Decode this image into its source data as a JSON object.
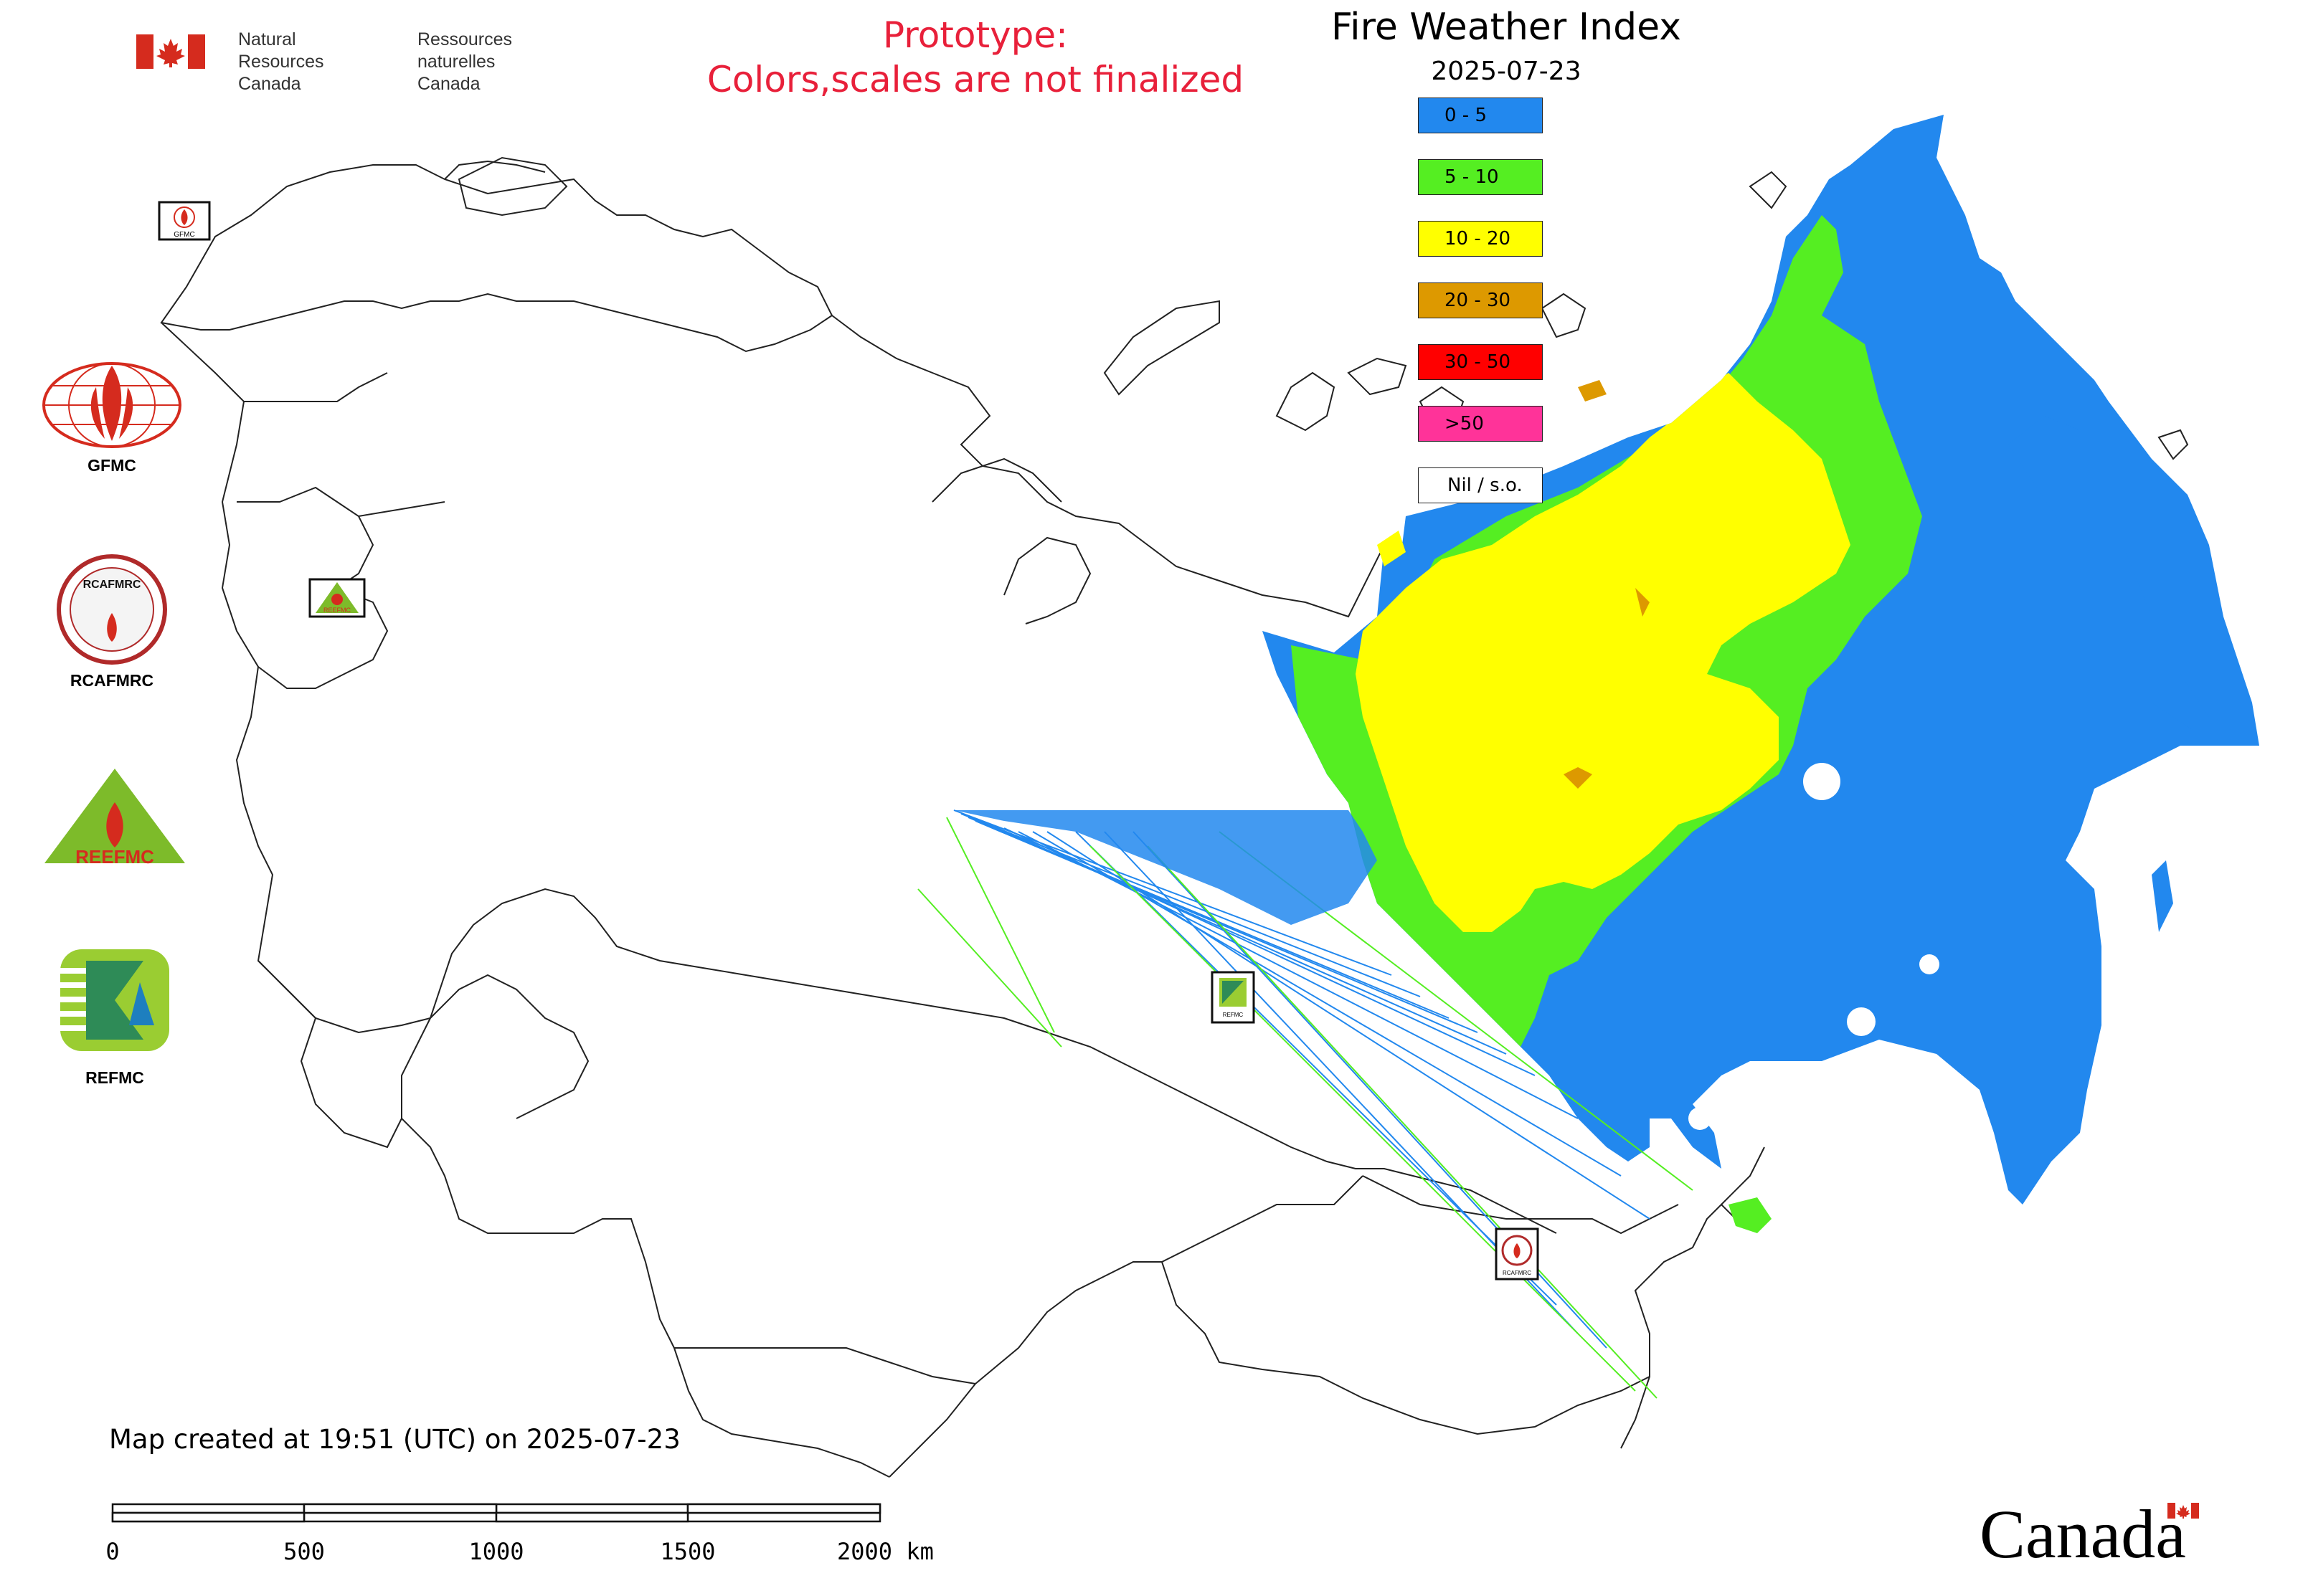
{
  "header": {
    "agency_en_line1": "Natural Resources",
    "agency_en_line2": "Canada",
    "agency_fr_line1": "Ressources naturelles",
    "agency_fr_line2": "Canada",
    "prototype_line1": "Prototype:",
    "prototype_line2": "Colors,scales are not finalized"
  },
  "map": {
    "title": "Fire Weather Index",
    "date": "2025-07-23"
  },
  "legend": {
    "items": [
      {
        "label": "0 - 5",
        "color": "#2288ee"
      },
      {
        "label": "5 - 10",
        "color": "#55ee22"
      },
      {
        "label": "10 - 20",
        "color": "#ffff00"
      },
      {
        "label": "20 - 30",
        "color": "#dd9900"
      },
      {
        "label": "30 - 50",
        "color": "#ff0000"
      },
      {
        "label": ">50",
        "color": "#ff3399"
      },
      {
        "label": "Nil / s.o.",
        "color": "#ffffff"
      }
    ]
  },
  "logos": {
    "gfmc": "GFMC",
    "rcafmrc": "RCAFMRC",
    "reefmc": "REEFMC",
    "refmc": "REFMC",
    "rcafmrc_ring_text": "RCAFMRC",
    "reefmc_text": "REEFMC",
    "small_gfmc": "GFMC",
    "small_refmc": "REFMC",
    "small_reefmc": "REEFMC",
    "small_rcafmrc": "RCAFMRC"
  },
  "footer": {
    "created": "Map created at 19:51 (UTC) on 2025-07-23",
    "scale_labels": [
      "0",
      "500",
      "1000",
      "1500",
      "2000 km"
    ],
    "wordmark": "Canada"
  },
  "colors": {
    "fwi_0_5": "#2288ee",
    "fwi_5_10": "#55ee22",
    "fwi_10_20": "#ffff00",
    "fwi_20_30": "#dd9900",
    "prototype_text": "#e8203a",
    "flag_red": "#d52b1e"
  }
}
